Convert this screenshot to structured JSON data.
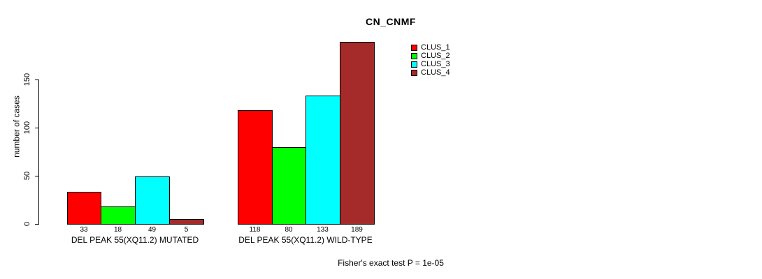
{
  "chart_data": {
    "type": "bar",
    "title": "CN_CNMF",
    "xlabel": "",
    "ylabel": "number of cases",
    "ylim": [
      0,
      150
    ],
    "yticks": [
      0,
      50,
      100,
      150
    ],
    "grid": false,
    "legend_position": "top-right",
    "bar_value_labels": true,
    "categories": [
      "DEL PEAK 55(XQ11.2) MUTATED",
      "DEL PEAK 55(XQ11.2) WILD-TYPE"
    ],
    "series": [
      {
        "name": "CLUS_1",
        "color": "#FF0000",
        "values": [
          33,
          118
        ]
      },
      {
        "name": "CLUS_2",
        "color": "#00FF00",
        "values": [
          18,
          80
        ]
      },
      {
        "name": "CLUS_3",
        "color": "#00FFFF",
        "values": [
          49,
          133
        ]
      },
      {
        "name": "CLUS_4",
        "color": "#A52A2A",
        "values": [
          5,
          189
        ]
      }
    ],
    "annotation": "Fisher's exact test P = 1e-05"
  }
}
